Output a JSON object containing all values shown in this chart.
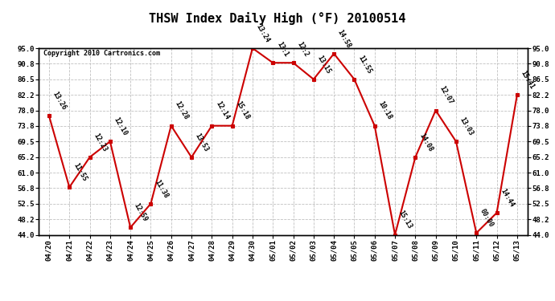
{
  "title": "THSW Index Daily High (°F) 20100514",
  "copyright": "Copyright 2010 Cartronics.com",
  "x_labels": [
    "04/20",
    "04/21",
    "04/22",
    "04/23",
    "04/24",
    "04/25",
    "04/26",
    "04/27",
    "04/28",
    "04/29",
    "04/30",
    "05/01",
    "05/02",
    "05/03",
    "05/04",
    "05/05",
    "05/06",
    "05/07",
    "05/08",
    "05/09",
    "05/10",
    "05/11",
    "05/12",
    "05/13"
  ],
  "y_values": [
    76.5,
    57.0,
    65.2,
    69.5,
    46.0,
    52.5,
    73.8,
    65.2,
    73.8,
    73.8,
    95.0,
    91.0,
    91.0,
    86.5,
    93.5,
    86.5,
    73.8,
    44.0,
    65.2,
    78.0,
    69.5,
    44.5,
    50.0,
    82.2
  ],
  "time_labels": [
    "13:26",
    "11:55",
    "12:23",
    "12:10",
    "12:59",
    "11:38",
    "12:28",
    "13:53",
    "12:14",
    "15:18",
    "13:24",
    "13:1",
    "12:2",
    "13:15",
    "14:58",
    "11:55",
    "10:18",
    "15:13",
    "14:08",
    "12:07",
    "13:03",
    "00:00",
    "14:44",
    "15:41"
  ],
  "yticks": [
    44.0,
    48.2,
    52.5,
    56.8,
    61.0,
    65.2,
    69.5,
    73.8,
    78.0,
    82.2,
    86.5,
    90.8,
    95.0
  ],
  "ylim": [
    44.0,
    95.0
  ],
  "line_color": "#cc0000",
  "marker_color": "#cc0000",
  "bg_color": "#ffffff",
  "grid_color": "#c0c0c0",
  "title_fontsize": 11,
  "tick_fontsize": 6.5,
  "annot_fontsize": 6,
  "copyright_fontsize": 6
}
